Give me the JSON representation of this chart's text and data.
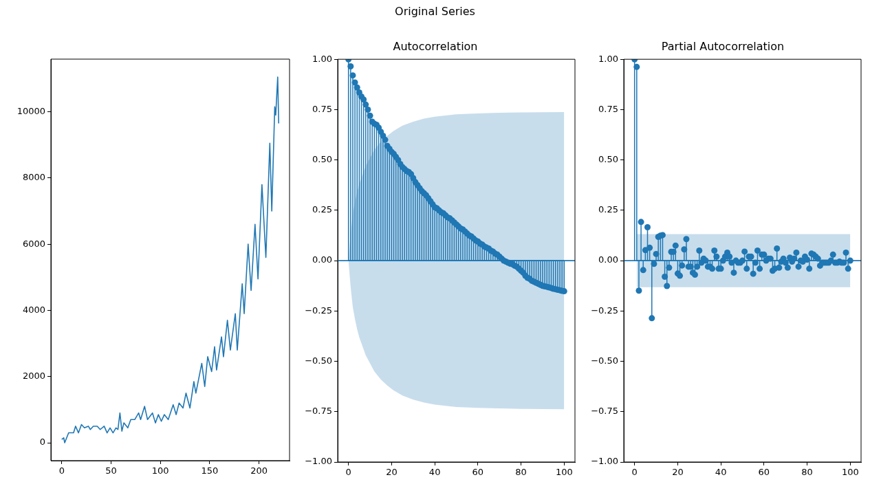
{
  "chart_data": [
    {
      "type": "other",
      "title": "Original Series"
    },
    {
      "type": "line",
      "color": "#1f77b4",
      "x": [
        0,
        2,
        3,
        7,
        9,
        12,
        14,
        17,
        20,
        23,
        27,
        29,
        32,
        36,
        39,
        43,
        46,
        49,
        52,
        55,
        57,
        59,
        61,
        63,
        67,
        70,
        74,
        78,
        80,
        84,
        87,
        92,
        95,
        98,
        101,
        104,
        108,
        113,
        116,
        119,
        123,
        126,
        130,
        134,
        136,
        142,
        145,
        148,
        152,
        155,
        157,
        162,
        164,
        168,
        171,
        176,
        178,
        183,
        185,
        189,
        192,
        196,
        199,
        203,
        207,
        211,
        213,
        216,
        217,
        219,
        220
      ],
      "values": [
        100,
        150,
        0,
        300,
        300,
        300,
        500,
        300,
        550,
        450,
        500,
        400,
        500,
        500,
        400,
        500,
        300,
        450,
        300,
        450,
        400,
        900,
        350,
        600,
        450,
        700,
        700,
        900,
        700,
        1100,
        700,
        900,
        600,
        850,
        650,
        850,
        700,
        1150,
        850,
        1200,
        1050,
        1500,
        1050,
        1850,
        1500,
        2400,
        1700,
        2600,
        2150,
        2900,
        2200,
        3200,
        2600,
        3700,
        2800,
        3900,
        2800,
        4800,
        3900,
        6000,
        4600,
        6600,
        4950,
        7800,
        5600,
        9050,
        7000,
        10150,
        9900,
        11050,
        9650
      ],
      "xlim": [
        -11,
        231
      ],
      "xticks": [
        0,
        50,
        100,
        150,
        200
      ],
      "ylim": [
        -540,
        11590
      ],
      "yticks": [
        0,
        2000,
        4000,
        6000,
        8000,
        10000
      ]
    },
    {
      "type": "lollipop",
      "title": "Autocorrelation",
      "x": [
        0,
        1,
        2,
        3,
        4,
        5,
        6,
        7,
        8,
        9,
        10,
        11,
        12,
        13,
        14,
        15,
        16,
        17,
        18,
        19,
        20,
        21,
        22,
        23,
        24,
        25,
        26,
        27,
        28,
        29,
        30,
        31,
        32,
        33,
        34,
        35,
        36,
        37,
        38,
        39,
        40,
        41,
        42,
        43,
        44,
        45,
        46,
        47,
        48,
        49,
        50,
        51,
        52,
        53,
        54,
        55,
        56,
        57,
        58,
        59,
        60,
        61,
        62,
        63,
        64,
        65,
        66,
        67,
        68,
        69,
        70,
        71,
        72,
        73,
        74,
        75,
        76,
        77,
        78,
        79,
        80,
        81,
        82,
        83,
        84,
        85,
        86,
        87,
        88,
        89,
        90,
        91,
        92,
        93,
        94,
        95,
        96,
        97,
        98,
        99,
        100
      ],
      "series": [
        {
          "type": "line",
          "color": "#1f77b4",
          "x": [
            0,
            1,
            2,
            3,
            4,
            5,
            6,
            8,
            10,
            12,
            15,
            18,
            21,
            25,
            30,
            35,
            40,
            50,
            60,
            70,
            80,
            90,
            100
          ],
          "values": [
            0,
            0,
            0,
            0,
            0,
            0,
            0,
            0,
            0,
            0,
            0,
            0,
            0,
            0,
            0,
            0,
            0,
            0,
            0,
            0,
            0,
            0,
            0
          ],
          "lower": [
            0,
            -0.13,
            -0.23,
            -0.29,
            -0.34,
            -0.38,
            -0.41,
            -0.47,
            -0.51,
            -0.55,
            -0.59,
            -0.62,
            -0.645,
            -0.67,
            -0.69,
            -0.705,
            -0.715,
            -0.727,
            -0.731,
            -0.734,
            -0.736,
            -0.737,
            -0.738
          ],
          "upper": [
            0,
            0.13,
            0.23,
            0.29,
            0.34,
            0.38,
            0.41,
            0.47,
            0.51,
            0.55,
            0.59,
            0.62,
            0.645,
            0.67,
            0.69,
            0.705,
            0.715,
            0.727,
            0.731,
            0.734,
            0.736,
            0.737,
            0.738
          ]
        },
        {
          "marker": "circle",
          "color": "#1f77b4",
          "values": [
            1,
            0.965,
            0.92,
            0.885,
            0.86,
            0.835,
            0.815,
            0.8,
            0.775,
            0.75,
            0.72,
            0.69,
            0.68,
            0.675,
            0.66,
            0.64,
            0.62,
            0.6,
            0.57,
            0.555,
            0.54,
            0.53,
            0.515,
            0.5,
            0.48,
            0.465,
            0.455,
            0.445,
            0.44,
            0.43,
            0.41,
            0.39,
            0.375,
            0.36,
            0.345,
            0.335,
            0.325,
            0.31,
            0.295,
            0.28,
            0.265,
            0.26,
            0.25,
            0.24,
            0.235,
            0.225,
            0.215,
            0.21,
            0.2,
            0.19,
            0.18,
            0.17,
            0.16,
            0.155,
            0.145,
            0.135,
            0.125,
            0.12,
            0.11,
            0.1,
            0.095,
            0.085,
            0.08,
            0.07,
            0.065,
            0.06,
            0.05,
            0.045,
            0.035,
            0.03,
            0.02,
            0.01,
            0,
            -0.005,
            -0.01,
            -0.015,
            -0.018,
            -0.025,
            -0.03,
            -0.04,
            -0.05,
            -0.06,
            -0.075,
            -0.085,
            -0.09,
            -0.1,
            -0.105,
            -0.11,
            -0.115,
            -0.12,
            -0.125,
            -0.128,
            -0.13,
            -0.133,
            -0.136,
            -0.14,
            -0.142,
            -0.145,
            -0.147,
            -0.15,
            -0.152
          ]
        }
      ],
      "ref_lines": [
        {
          "axis": "y",
          "value": 0,
          "color": "#1f77b4"
        }
      ],
      "xlim": [
        -5,
        105
      ],
      "xticks": [
        0,
        20,
        40,
        60,
        80,
        100
      ],
      "ylim": [
        -1,
        1
      ],
      "yticks": [
        {
          "value": -1,
          "label": "−1.00"
        },
        {
          "value": -0.75,
          "label": "−0.75"
        },
        {
          "value": -0.5,
          "label": "−0.50"
        },
        {
          "value": -0.25,
          "label": "−0.25"
        },
        {
          "value": 0,
          "label": "0.00"
        },
        {
          "value": 0.25,
          "label": "0.25"
        },
        {
          "value": 0.5,
          "label": "0.50"
        },
        {
          "value": 0.75,
          "label": "0.75"
        },
        {
          "value": 1,
          "label": "1.00"
        }
      ]
    },
    {
      "type": "lollipop",
      "title": "Partial Autocorrelation",
      "x": [
        0,
        1,
        2,
        3,
        4,
        5,
        6,
        7,
        8,
        9,
        10,
        11,
        12,
        13,
        14,
        15,
        16,
        17,
        18,
        19,
        20,
        21,
        22,
        23,
        24,
        25,
        26,
        27,
        28,
        29,
        30,
        31,
        32,
        33,
        34,
        35,
        36,
        37,
        38,
        39,
        40,
        41,
        42,
        43,
        44,
        45,
        46,
        47,
        48,
        49,
        50,
        51,
        52,
        53,
        54,
        55,
        56,
        57,
        58,
        59,
        60,
        61,
        62,
        63,
        64,
        65,
        66,
        67,
        68,
        69,
        70,
        71,
        72,
        73,
        74,
        75,
        76,
        77,
        78,
        79,
        80,
        81,
        82,
        83,
        84,
        85,
        86,
        87,
        88,
        89,
        90,
        91,
        92,
        93,
        94,
        95,
        96,
        97,
        98,
        99,
        100
      ],
      "series": [
        {
          "type": "line",
          "color": "#1f77b4",
          "x": [
            1,
            100
          ],
          "values": [
            0,
            0
          ],
          "lower": [
            -0.132,
            -0.132
          ],
          "upper": [
            0.132,
            0.132
          ]
        },
        {
          "marker": "circle",
          "color": "#1f77b4",
          "values": [
            1,
            0.962,
            -0.149,
            0.192,
            -0.047,
            0.052,
            0.166,
            0.064,
            -0.286,
            -0.016,
            0.033,
            0.118,
            0.124,
            0.127,
            -0.08,
            -0.126,
            -0.035,
            0.044,
            0.044,
            0.075,
            -0.064,
            -0.075,
            -0.024,
            0.056,
            0.107,
            -0.03,
            -0.03,
            -0.06,
            -0.07,
            -0.03,
            0.05,
            -0.01,
            0.01,
            0,
            -0.03,
            -0.03,
            -0.04,
            0.05,
            0.02,
            -0.04,
            -0.04,
            0,
            0.02,
            0.04,
            0.02,
            -0.01,
            -0.06,
            0,
            -0.01,
            -0.01,
            0,
            0.045,
            -0.04,
            0.02,
            0.02,
            -0.065,
            -0.01,
            0.05,
            -0.04,
            0.03,
            0.03,
            0,
            0.01,
            0.01,
            -0.05,
            -0.04,
            0.06,
            -0.035,
            -0.005,
            0.01,
            -0.01,
            -0.035,
            0.015,
            -0.005,
            0.01,
            0.04,
            -0.03,
            0,
            -0.005,
            0.02,
            0.005,
            -0.04,
            0.035,
            0.03,
            0.02,
            0.01,
            -0.025,
            -0.01,
            -0.01,
            -0.01,
            -0.01,
            0,
            0.03,
            -0.01,
            -0.01,
            -0.005,
            -0.01,
            -0.01,
            0.04,
            -0.04,
            0
          ]
        }
      ],
      "ref_lines": [
        {
          "axis": "y",
          "value": 0,
          "color": "#1f77b4"
        }
      ],
      "xlim": [
        -5,
        105
      ],
      "xticks": [
        0,
        20,
        40,
        60,
        80,
        100
      ],
      "ylim": [
        -1,
        1
      ],
      "yticks": [
        {
          "value": -1,
          "label": "−1.00"
        },
        {
          "value": -0.75,
          "label": "−0.75"
        },
        {
          "value": -0.5,
          "label": "−0.50"
        },
        {
          "value": -0.25,
          "label": "−0.25"
        },
        {
          "value": 0,
          "label": "0.00"
        },
        {
          "value": 0.25,
          "label": "0.25"
        },
        {
          "value": 0.5,
          "label": "0.50"
        },
        {
          "value": 0.75,
          "label": "0.75"
        },
        {
          "value": 1,
          "label": "1.00"
        }
      ]
    }
  ]
}
